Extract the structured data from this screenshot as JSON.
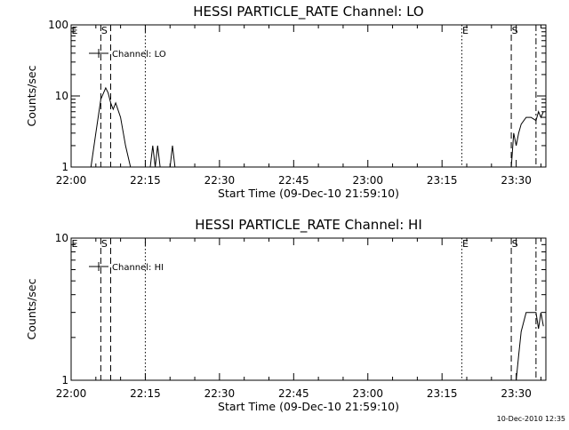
{
  "chart_data": [
    {
      "type": "line",
      "title": "HESSI PARTICLE_RATE Channel: LO",
      "xlabel": "Start Time (09-Dec-10 21:59:10)",
      "ylabel": "Counts/sec",
      "yscale": "log",
      "ylim": [
        1,
        100
      ],
      "xlim": [
        "22:00",
        "23:36"
      ],
      "x_tick_labels": [
        "22:00",
        "22:15",
        "22:30",
        "22:45",
        "23:00",
        "23:15",
        "23:30"
      ],
      "y_tick_labels": [
        "1",
        "10",
        "100"
      ],
      "legend": "Channel: LO",
      "legend_placement": "top-left",
      "grid": false,
      "markers": [
        {
          "label": "E",
          "time": "22:00",
          "style": "solid"
        },
        {
          "label": "S",
          "time": "22:06",
          "style": "dashed"
        },
        {
          "label": "",
          "time": "22:08",
          "style": "dashed"
        },
        {
          "label": "",
          "time": "22:15",
          "style": "dotted"
        },
        {
          "label": "E",
          "time": "23:19",
          "style": "dotted"
        },
        {
          "label": "S",
          "time": "23:29",
          "style": "dashed"
        },
        {
          "label": "",
          "time": "23:34",
          "style": "dashdot"
        }
      ],
      "series": [
        {
          "segments": [
            [
              [
                "22:04",
                1.0
              ],
              [
                "22:05",
                3.0
              ],
              [
                "22:06",
                9.0
              ],
              [
                "22:07",
                13.0
              ],
              [
                "22:07:30",
                11.0
              ],
              [
                "22:08",
                8.0
              ],
              [
                "22:08:30",
                6.5
              ],
              [
                "22:09",
                8.0
              ],
              [
                "22:10",
                5.0
              ],
              [
                "22:11",
                2.0
              ],
              [
                "22:12",
                1.0
              ]
            ],
            [
              [
                "22:16",
                1.0
              ],
              [
                "22:16:30",
                2.0
              ],
              [
                "22:17",
                1.0
              ],
              [
                "22:17:30",
                2.0
              ],
              [
                "22:18",
                1.0
              ]
            ],
            [
              [
                "22:20",
                1.0
              ],
              [
                "22:20:30",
                2.0
              ],
              [
                "22:21",
                1.0
              ]
            ],
            [
              [
                "23:29",
                1.0
              ],
              [
                "23:29:30",
                3.0
              ],
              [
                "23:30",
                2.0
              ],
              [
                "23:30:30",
                3.0
              ],
              [
                "23:31",
                4.0
              ],
              [
                "23:32",
                5.0
              ],
              [
                "23:33",
                5.0
              ],
              [
                "23:34",
                4.5
              ],
              [
                "23:34:30",
                6.0
              ],
              [
                "23:35",
                5.0
              ],
              [
                "23:35:30",
                6.0
              ]
            ]
          ]
        }
      ]
    },
    {
      "type": "line",
      "title": "HESSI PARTICLE_RATE Channel: HI",
      "xlabel": "Start Time (09-Dec-10 21:59:10)",
      "ylabel": "Counts/sec",
      "yscale": "log",
      "ylim": [
        1,
        10
      ],
      "xlim": [
        "22:00",
        "23:36"
      ],
      "x_tick_labels": [
        "22:00",
        "22:15",
        "22:30",
        "22:45",
        "23:00",
        "23:15",
        "23:30"
      ],
      "y_tick_labels": [
        "1",
        "10"
      ],
      "legend": "Channel: HI",
      "legend_placement": "top-left",
      "grid": false,
      "markers": [
        {
          "label": "E",
          "time": "22:00",
          "style": "solid"
        },
        {
          "label": "S",
          "time": "22:06",
          "style": "dashed"
        },
        {
          "label": "",
          "time": "22:08",
          "style": "dashed"
        },
        {
          "label": "",
          "time": "22:15",
          "style": "dotted"
        },
        {
          "label": "E",
          "time": "23:19",
          "style": "dotted"
        },
        {
          "label": "S",
          "time": "23:29",
          "style": "dashed"
        },
        {
          "label": "",
          "time": "23:34",
          "style": "dashdot"
        }
      ],
      "series": [
        {
          "segments": [
            [
              [
                "23:30",
                1.0
              ],
              [
                "23:30:30",
                1.5
              ],
              [
                "23:31",
                2.2
              ],
              [
                "23:32",
                3.0
              ],
              [
                "23:33",
                3.0
              ],
              [
                "23:34",
                3.0
              ],
              [
                "23:34:30",
                2.3
              ],
              [
                "23:35",
                3.0
              ],
              [
                "23:35:30",
                2.4
              ]
            ]
          ]
        }
      ]
    }
  ],
  "footer": "10-Dec-2010 12:35"
}
